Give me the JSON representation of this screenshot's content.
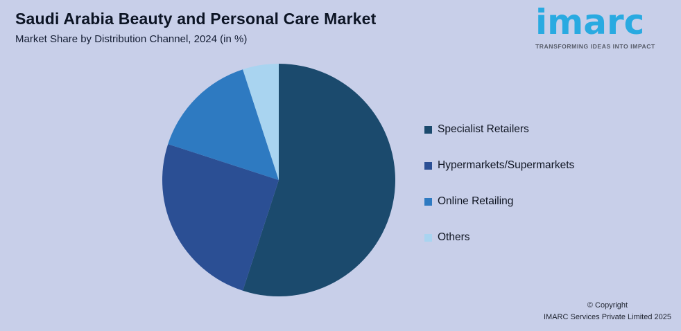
{
  "header": {
    "title": "Saudi Arabia Beauty and Personal Care Market",
    "subtitle": "Market Share by Distribution Channel, 2024 (in %)"
  },
  "logo": {
    "name": "imarc",
    "tagline": "TRANSFORMING IDEAS INTO IMPACT",
    "brand_color": "#29aae1"
  },
  "chart_data": {
    "type": "pie",
    "title": "Saudi Arabia Beauty and Personal Care Market",
    "subtitle": "Market Share by Distribution Channel, 2024 (in %)",
    "unit": "%",
    "start_angle_deg": 0,
    "direction": "clockwise",
    "legend_position": "right",
    "slices": [
      {
        "label": "Specialist Retailers",
        "value": 55,
        "color": "#1b4a6d"
      },
      {
        "label": "Hypermarkets/Supermarkets",
        "value": 25,
        "color": "#2b4f94"
      },
      {
        "label": "Online Retailing",
        "value": 15,
        "color": "#2e7ac1"
      },
      {
        "label": "Others",
        "value": 5,
        "color": "#a9d4f0"
      }
    ]
  },
  "footer": {
    "copyright_line1": "© Copyright",
    "copyright_line2": "IMARC Services Private Limited 2025"
  },
  "colors": {
    "background": "#c8cfe9",
    "title_text": "#0c1424",
    "subtitle_text": "#141d33"
  }
}
